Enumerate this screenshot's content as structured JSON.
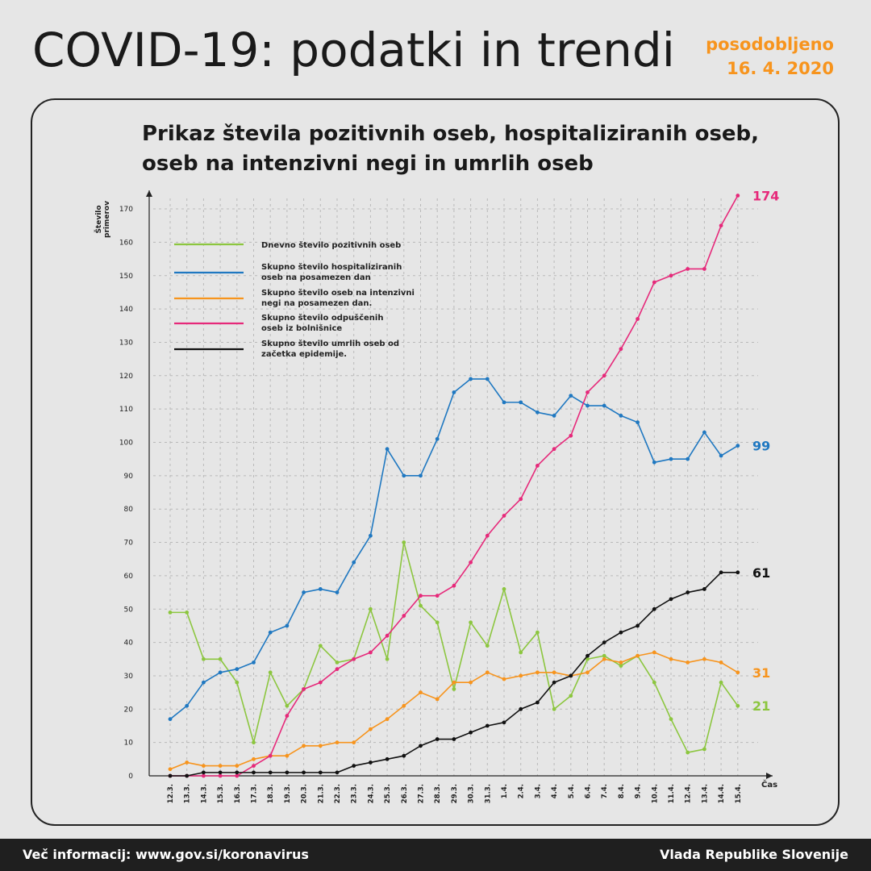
{
  "header": {
    "title": "COVID-19: podatki in trendi",
    "updated_label": "posodobljeno",
    "updated_date": "16. 4. 2020"
  },
  "chart_data": {
    "type": "line",
    "title": "Prikaz števila pozitivnih oseb, hospitaliziranih oseb, oseb na intenzivni negi in umrlih oseb",
    "ylabel_line1": "Število",
    "ylabel_line2": "primerov",
    "xlabel": "Čas",
    "ylim": [
      0,
      175
    ],
    "yticks": [
      0,
      10,
      20,
      30,
      40,
      50,
      60,
      70,
      80,
      90,
      100,
      110,
      120,
      130,
      140,
      150,
      160,
      170
    ],
    "grid": true,
    "legend_position": "top-left",
    "categories": [
      "12.3.",
      "13.3.",
      "14.3.",
      "15.3.",
      "16.3.",
      "17.3.",
      "18.3.",
      "19.3.",
      "20.3.",
      "21.3.",
      "22.3.",
      "23.3.",
      "24.3.",
      "25.3.",
      "26.3.",
      "27.3.",
      "28.3.",
      "29.3.",
      "30.3.",
      "31.3.",
      "1.4.",
      "2.4.",
      "3.4.",
      "4.4.",
      "5.4.",
      "6.4.",
      "7.4.",
      "8.4.",
      "9.4.",
      "10.4.",
      "11.4.",
      "12.4.",
      "13.4.",
      "14.4.",
      "15.4."
    ],
    "series": [
      {
        "name": "Dnevno število pozitivnih oseb",
        "color": "#8cc63f",
        "values": [
          49,
          49,
          35,
          35,
          28,
          10,
          31,
          21,
          26,
          39,
          34,
          35,
          50,
          35,
          70,
          51,
          46,
          26,
          46,
          39,
          56,
          37,
          43,
          20,
          24,
          35,
          36,
          33,
          36,
          28,
          17,
          7,
          8,
          28,
          21
        ],
        "end_label": "21"
      },
      {
        "name": "Skupno število hospitaliziranih oseb na posamezen dan",
        "color": "#1f78c1",
        "values": [
          17,
          21,
          28,
          31,
          32,
          34,
          43,
          45,
          55,
          56,
          55,
          64,
          72,
          98,
          90,
          90,
          101,
          115,
          119,
          119,
          112,
          112,
          109,
          108,
          114,
          111,
          111,
          108,
          106,
          94,
          95,
          95,
          103,
          96,
          99
        ],
        "end_label": "99"
      },
      {
        "name": "Skupno število oseb na intenzivni negi na posamezen dan.",
        "color": "#f7941d",
        "values": [
          2,
          4,
          3,
          3,
          3,
          5,
          6,
          6,
          9,
          9,
          10,
          10,
          14,
          17,
          21,
          25,
          23,
          28,
          28,
          31,
          29,
          30,
          31,
          31,
          30,
          31,
          35,
          34,
          36,
          37,
          35,
          34,
          35,
          34,
          31
        ],
        "end_label": "31"
      },
      {
        "name": "Skupno število odpuščenih oseb iz bolnišnice",
        "color": "#e6297a",
        "values": [
          0,
          0,
          0,
          0,
          0,
          3,
          6,
          18,
          26,
          28,
          32,
          35,
          37,
          42,
          48,
          54,
          54,
          57,
          64,
          72,
          78,
          83,
          93,
          98,
          102,
          115,
          120,
          128,
          137,
          148,
          150,
          152,
          152,
          165,
          174
        ],
        "end_label": "174"
      },
      {
        "name": "Skupno število umrlih oseb od začetka epidemije.",
        "color": "#111111",
        "values": [
          0,
          0,
          1,
          1,
          1,
          1,
          1,
          1,
          1,
          1,
          1,
          3,
          4,
          5,
          6,
          9,
          11,
          11,
          13,
          15,
          16,
          20,
          22,
          28,
          30,
          36,
          40,
          43,
          45,
          50,
          53,
          55,
          56,
          61,
          61
        ],
        "end_label": "61"
      }
    ]
  },
  "legend": {
    "items": [
      {
        "line1": "Dnevno število pozitivnih oseb",
        "line2": ""
      },
      {
        "line1": "Skupno število hospitaliziranih",
        "line2": "oseb na posamezen dan"
      },
      {
        "line1": "Skupno število oseb na intenzivni",
        "line2": "negi na posamezen dan."
      },
      {
        "line1": "Skupno število odpuščenih",
        "line2": "oseb iz bolnišnice"
      },
      {
        "line1": "Skupno število umrlih oseb od",
        "line2": "začetka epidemije."
      }
    ]
  },
  "footer": {
    "more_info": "Več informacij: www.gov.si/koronavirus",
    "publisher": "Vlada Republike Slovenije"
  }
}
